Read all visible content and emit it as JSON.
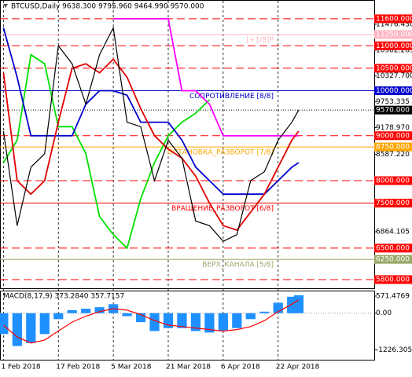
{
  "chart_data": [
    {
      "type": "line",
      "title": "BTCUSD,Daily  9638.300 9795.960 9464.990 9570.000",
      "x": [
        "2018-02-01",
        "2018-02-05",
        "2018-02-09",
        "2018-02-13",
        "2018-02-17",
        "2018-02-21",
        "2018-02-25",
        "2018-03-01",
        "2018-03-05",
        "2018-03-09",
        "2018-03-13",
        "2018-03-17",
        "2018-03-21",
        "2018-03-25",
        "2018-03-29",
        "2018-04-02",
        "2018-04-06",
        "2018-04-10",
        "2018-04-14",
        "2018-04-18",
        "2018-04-22",
        "2018-04-26",
        "2018-04-28"
      ],
      "xlim": [
        "2018-01-31",
        "2018-05-20"
      ],
      "xticks": [
        {
          "value": "2018-02-01",
          "label": "1 Feb 2018"
        },
        {
          "value": "2018-02-17",
          "label": "17 Feb 2018"
        },
        {
          "value": "2018-03-05",
          "label": "5 Mar 2018"
        },
        {
          "value": "2018-03-21",
          "label": "21 Mar 2018"
        },
        {
          "value": "2018-04-06",
          "label": "6 Apr 2018"
        },
        {
          "value": "2018-04-22",
          "label": "22 Apr 2018"
        }
      ],
      "ylim": [
        5590,
        12000
      ],
      "yticks": [
        {
          "value": 11476.43,
          "label": "11476.430"
        },
        {
          "value": 10902.265,
          "label": "10902.265"
        },
        {
          "value": 10327.7,
          "label": "10327.700"
        },
        {
          "value": 9753.335,
          "label": "9753.335"
        },
        {
          "value": 9178.97,
          "label": "9178.970"
        },
        {
          "value": 8587.22,
          "label": "8587.220"
        },
        {
          "value": 6864.105,
          "label": "6864.105"
        }
      ],
      "series": [
        {
          "color": "#00e000",
          "values": [
            8400,
            8900,
            10800,
            10600,
            9200,
            9200,
            8600,
            7200,
            6800,
            6500,
            7600,
            8400,
            9000,
            9300,
            9500,
            9800,
            null,
            null,
            null,
            null,
            null,
            null,
            null
          ]
        },
        {
          "color": "#ff00ff",
          "values": [
            null,
            null,
            null,
            null,
            null,
            null,
            null,
            null,
            11600,
            11600,
            11600,
            11600,
            11600,
            10000,
            10000,
            9700,
            9000,
            9000,
            9000,
            9000,
            9000,
            9000,
            9000
          ]
        },
        {
          "color": "#0000cd",
          "values": [
            11400,
            10300,
            9000,
            9000,
            9000,
            9000,
            9700,
            10000,
            10000,
            9900,
            9300,
            9300,
            9300,
            8900,
            8300,
            8000,
            7700,
            7700,
            7700,
            7700,
            8000,
            8300,
            8400
          ]
        },
        {
          "color": "#e00000",
          "values": [
            10400,
            8000,
            7700,
            8000,
            9300,
            10500,
            10600,
            10400,
            10700,
            10300,
            9600,
            9000,
            8700,
            8500,
            8100,
            7500,
            7000,
            6900,
            7300,
            7700,
            8300,
            8900,
            9100
          ]
        },
        {
          "color": "#000000",
          "values": [
            9100,
            7000,
            8300,
            8600,
            11000,
            10600,
            9700,
            10800,
            11400,
            9300,
            9200,
            8000,
            8900,
            8500,
            7100,
            7000,
            6650,
            6800,
            8000,
            8200,
            8900,
            9300,
            9570
          ]
        }
      ],
      "levels": [
        {
          "value": 11600,
          "label": "11600.000",
          "color": "#ff0000",
          "line": "dashed"
        },
        {
          "value": 11250,
          "label": "11250.000",
          "color": "#ffb6c1",
          "line": "solid",
          "tag": "[+1/8]P"
        },
        {
          "value": 11000,
          "label": "11000.000",
          "color": "#ff0000",
          "line": "dashed"
        },
        {
          "value": 10500,
          "label": "10500.000",
          "color": "#ff0000",
          "line": "dashed"
        },
        {
          "value": 10000,
          "label": "10000.000",
          "color": "#0000cd",
          "line": "solid",
          "tag": "СОПРОТИВЛЕНИЕ [8/8]"
        },
        {
          "value": 9570,
          "label": "9570.000",
          "color": "#000000",
          "line": "dotted"
        },
        {
          "value": 9000,
          "label": "9000.000",
          "color": "#ff0000",
          "line": "dashed"
        },
        {
          "value": 8750,
          "label": "8750.000",
          "color": "#ffa500",
          "line": "solid",
          "tag": "ОСТАНОВКА_РАЗВОРОТ [7/8]"
        },
        {
          "value": 8000,
          "label": "8000.000",
          "color": "#ff0000",
          "line": "dashed"
        },
        {
          "value": 7500,
          "label": "7500.000",
          "color": "#ff0000",
          "line": "solid",
          "tag": "ВРАЩЕНИЕ_РАЗВОРОТ [6/8]"
        },
        {
          "value": 6500,
          "label": "6500.000",
          "color": "#ff0000",
          "line": "dashed"
        },
        {
          "value": 6250,
          "label": "6250.000",
          "color": "#9aa86a",
          "line": "solid",
          "tag": "ВЕРХ_КАНАЛА [5/8]"
        },
        {
          "value": 5800,
          "label": "5800.000",
          "color": "#ff0000",
          "line": "dashed"
        }
      ]
    },
    {
      "type": "macd",
      "title": "MACD(8,17,9) 373.2840 357.7157",
      "ylim": [
        -1560,
        730
      ],
      "yticks": [
        571.4769,
        {
          "value": 0,
          "label": "0.00"
        },
        -1226.3054
      ],
      "series": [
        {
          "kind": "bar",
          "color": "#1e90ff",
          "values": [
            -700,
            -1100,
            -1000,
            -700,
            -200,
            100,
            150,
            200,
            300,
            -100,
            -300,
            -600,
            -500,
            -500,
            -600,
            -650,
            -600,
            -500,
            -200,
            50,
            350,
            550,
            600
          ]
        },
        {
          "kind": "line",
          "color": "#ff0000",
          "values": [
            -400,
            -800,
            -1000,
            -900,
            -600,
            -300,
            -100,
            50,
            150,
            100,
            -50,
            -250,
            -400,
            -450,
            -500,
            -550,
            -600,
            -550,
            -450,
            -250,
            50,
            300,
            450
          ]
        }
      ]
    }
  ]
}
